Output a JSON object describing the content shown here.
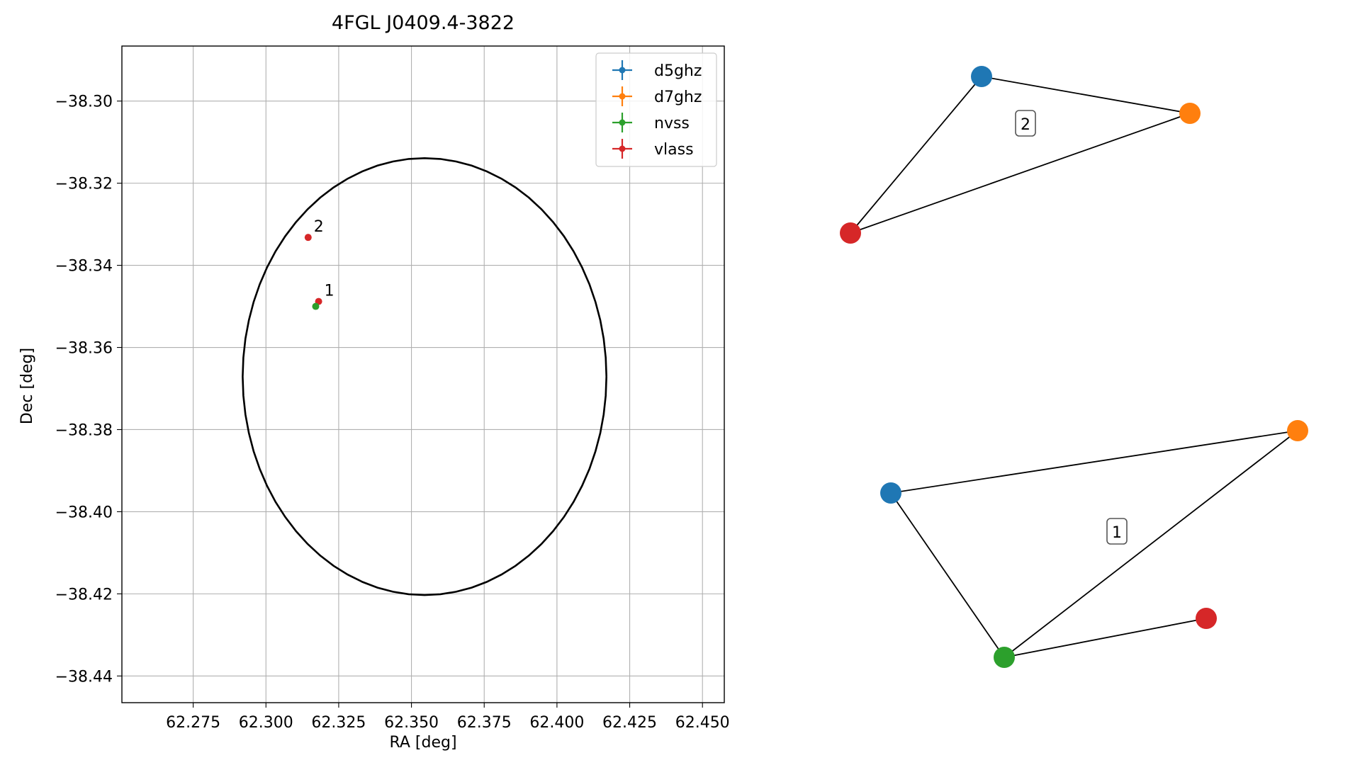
{
  "chart_data": [
    {
      "type": "scatter",
      "title": "4FGL J0409.4-3822",
      "xlabel": "RA [deg]",
      "ylabel": "Dec [deg]",
      "xlim": [
        62.2505,
        62.4575
      ],
      "ylim": [
        -38.4465,
        -38.2866
      ],
      "xticks": [
        62.275,
        62.3,
        62.325,
        62.35,
        62.375,
        62.4,
        62.425,
        62.45
      ],
      "xtick_labels": [
        "62.275",
        "62.300",
        "62.325",
        "62.350",
        "62.375",
        "62.400",
        "62.425",
        "62.450"
      ],
      "yticks": [
        -38.3,
        -38.32,
        -38.34,
        -38.36,
        -38.38,
        -38.4,
        -38.42,
        -38.44
      ],
      "ytick_labels": [
        "−38.30",
        "−38.32",
        "−38.34",
        "−38.36",
        "−38.38",
        "−38.40",
        "−38.42",
        "−38.44"
      ],
      "grid": true,
      "legend_position": "top-right",
      "legend": [
        {
          "name": "d5ghz",
          "color": "#1f77b4"
        },
        {
          "name": "d7ghz",
          "color": "#ff7f0e"
        },
        {
          "name": "nvss",
          "color": "#2ca02c"
        },
        {
          "name": "vlass",
          "color": "#d62728"
        }
      ],
      "ellipse": {
        "center_ra": 62.3545,
        "center_dec": -38.3671,
        "half_width_ra": 0.0625,
        "half_height_dec": 0.0532,
        "color": "#000000"
      },
      "points": [
        {
          "series": "vlass",
          "ra": 62.3145,
          "dec": -38.3332,
          "color": "#d62728"
        },
        {
          "series": "vlass",
          "ra": 62.3181,
          "dec": -38.3488,
          "color": "#d62728"
        },
        {
          "series": "nvss",
          "ra": 62.3171,
          "dec": -38.35,
          "color": "#2ca02c"
        }
      ],
      "annotations": [
        {
          "text": "2",
          "ra": 62.3145,
          "dec": -38.3332
        },
        {
          "text": "1",
          "ra": 62.3181,
          "dec": -38.3488
        }
      ]
    },
    {
      "type": "network",
      "groups": [
        {
          "label": "2",
          "nodes": [
            {
              "series": "d5ghz",
              "color": "#1f77b4"
            },
            {
              "series": "d7ghz",
              "color": "#ff7f0e"
            },
            {
              "series": "vlass",
              "color": "#d62728"
            }
          ],
          "edges": [
            [
              "d5ghz",
              "d7ghz"
            ],
            [
              "d5ghz",
              "vlass"
            ],
            [
              "d7ghz",
              "vlass"
            ]
          ]
        },
        {
          "label": "1",
          "nodes": [
            {
              "series": "d5ghz",
              "color": "#1f77b4"
            },
            {
              "series": "d7ghz",
              "color": "#ff7f0e"
            },
            {
              "series": "nvss",
              "color": "#2ca02c"
            },
            {
              "series": "vlass",
              "color": "#d62728"
            }
          ],
          "edges": [
            [
              "d5ghz",
              "d7ghz"
            ],
            [
              "d5ghz",
              "nvss"
            ],
            [
              "d7ghz",
              "nvss"
            ],
            [
              "nvss",
              "vlass"
            ]
          ]
        }
      ]
    }
  ]
}
